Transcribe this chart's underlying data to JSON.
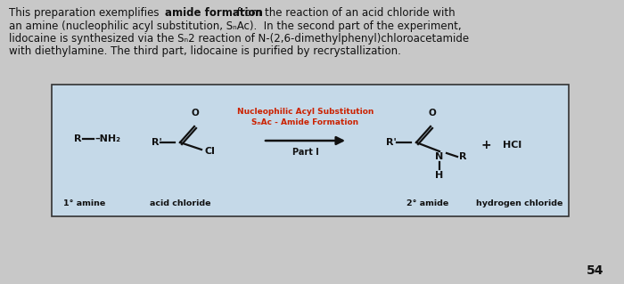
{
  "background_color": "#c8c8c8",
  "box_bg_color": "#c5d9e8",
  "box_edge_color": "#333333",
  "text_color": "#111111",
  "red_color": "#cc2200",
  "page_number": "54",
  "top_line1_normal1": "This preparation exemplifies ",
  "top_line1_bold": "amide formation",
  "top_line1_normal2": " from the reaction of an acid chloride with",
  "top_line2": "an amine (nucleophilic acyl substitution, SₙAc).  In the second part of the experiment,",
  "top_line3": "lidocaine is synthesized via the Sₙ2 reaction of N-(2,6-dimethylphenyl)chloroacetamide",
  "top_line4": "with diethylamine. The third part, lidocaine is purified by recrystallization.",
  "label_1amine": "1° amine",
  "label_acid_chloride": "acid chloride",
  "label_2amide": "2° amide",
  "label_hcl": "hydrogen chloride",
  "red_label_line1": "Nucleophilic Acyl Substitution",
  "red_label_line2": "SₙAc - Amide Formation",
  "part_label": "Part I",
  "arrow_color": "#111111",
  "bond_color": "#111111",
  "font_size_top": 8.5,
  "font_size_struct": 8.0,
  "font_size_label": 6.8,
  "font_size_red": 6.5,
  "font_size_part": 7.0,
  "font_size_page": 10.0
}
